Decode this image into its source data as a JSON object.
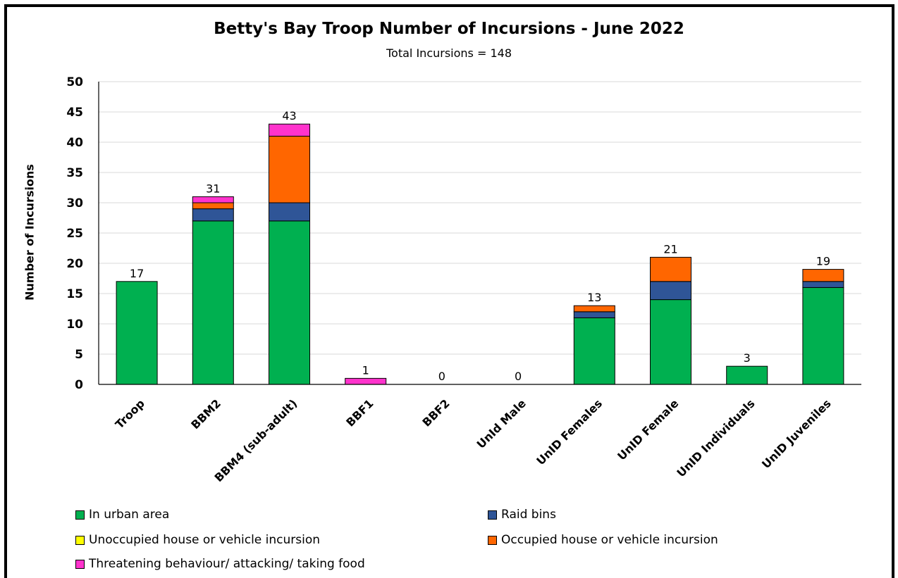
{
  "chart_data": {
    "type": "bar",
    "stacked": true,
    "title": "Betty's Bay Troop Number of Incursions - June 2022",
    "subtitle": "Total Incursions =  148",
    "ylabel": "Number of Incursions",
    "xlabel": "",
    "ylim": [
      0,
      50
    ],
    "yticks": [
      0,
      5,
      10,
      15,
      20,
      25,
      30,
      35,
      40,
      45,
      50
    ],
    "grid": true,
    "legend_position": "bottom",
    "categories": [
      "Troop",
      "BBM2",
      "BBM4 (sub-adult)",
      "BBF1",
      "BBF2",
      "UnId Male",
      "UnID Females",
      "UnID Female",
      "UnID Individuals",
      "UnID Juveniles"
    ],
    "totals": [
      17,
      31,
      43,
      1,
      0,
      0,
      13,
      21,
      3,
      19
    ],
    "series": [
      {
        "name": "In urban area",
        "color": "#00B050",
        "values": [
          17,
          27,
          27,
          0,
          0,
          0,
          11,
          14,
          3,
          16
        ]
      },
      {
        "name": "Raid bins",
        "color": "#2F5597",
        "values": [
          0,
          2,
          3,
          0,
          0,
          0,
          1,
          3,
          0,
          1
        ]
      },
      {
        "name": "Unoccupied house or vehicle incursion",
        "color": "#FFFF00",
        "values": [
          0,
          0,
          0,
          0,
          0,
          0,
          0,
          0,
          0,
          0
        ]
      },
      {
        "name": "Occupied house or vehicle incursion",
        "color": "#FF6600",
        "values": [
          0,
          1,
          11,
          0,
          0,
          0,
          1,
          4,
          0,
          2
        ]
      },
      {
        "name": "Threatening behaviour/ attacking/ taking food",
        "color": "#FF33CC",
        "values": [
          0,
          1,
          2,
          1,
          0,
          0,
          0,
          0,
          0,
          0
        ]
      }
    ]
  }
}
